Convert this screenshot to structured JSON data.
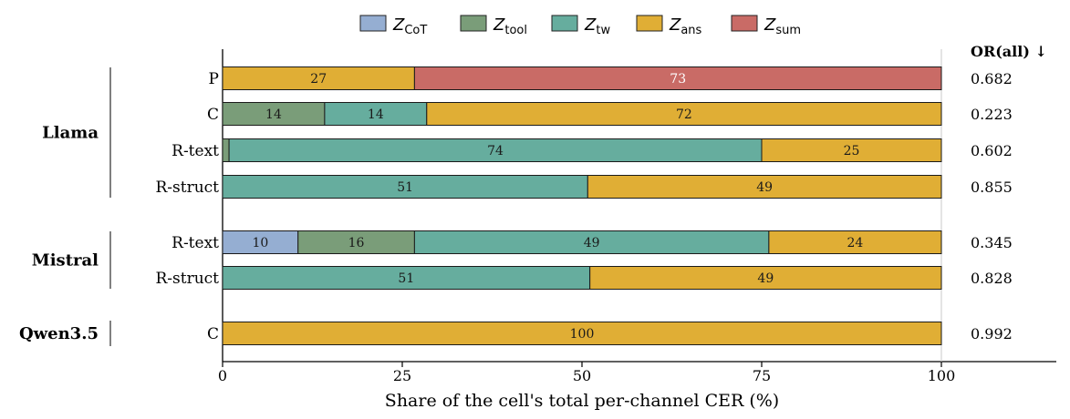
{
  "chart_data": {
    "type": "bar",
    "orientation": "horizontal",
    "stacked": true,
    "xlabel": "Share of the cell's total per-channel CER (%)",
    "xlim": [
      0,
      100
    ],
    "xticks": [
      0,
      25,
      50,
      75,
      100
    ],
    "legend": {
      "placement": "top-center",
      "entries": [
        {
          "key": "cot",
          "base": "Z",
          "sub": "CoT",
          "color": "#95aed2"
        },
        {
          "key": "tool",
          "base": "Z",
          "sub": "tool",
          "color": "#7a9d79"
        },
        {
          "key": "tw",
          "base": "Z",
          "sub": "tw",
          "color": "#66ad9e"
        },
        {
          "key": "ans",
          "base": "Z",
          "sub": "ans",
          "color": "#e0ae35"
        },
        {
          "key": "sum",
          "base": "Z",
          "sub": "sum",
          "color": "#c96b66"
        }
      ]
    },
    "or_header": "OR(all) ↓",
    "groups": [
      {
        "name": "Llama",
        "rows": [
          {
            "label": "P",
            "or": "0.682",
            "segments": [
              {
                "key": "ans",
                "value": 26.7,
                "label": "27"
              },
              {
                "key": "sum",
                "value": 73.3,
                "label": "73"
              }
            ]
          },
          {
            "label": "C",
            "or": "0.223",
            "segments": [
              {
                "key": "tool",
                "value": 14.2,
                "label": "14"
              },
              {
                "key": "tw",
                "value": 14.2,
                "label": "14"
              },
              {
                "key": "ans",
                "value": 71.6,
                "label": "72"
              }
            ]
          },
          {
            "label": "R-text",
            "or": "0.602",
            "segments": [
              {
                "key": "tool",
                "value": 0.9,
                "label": ""
              },
              {
                "key": "tw",
                "value": 74.1,
                "label": "74"
              },
              {
                "key": "ans",
                "value": 25.0,
                "label": "25"
              }
            ]
          },
          {
            "label": "R-struct",
            "or": "0.855",
            "segments": [
              {
                "key": "tw",
                "value": 50.8,
                "label": "51"
              },
              {
                "key": "ans",
                "value": 49.2,
                "label": "49"
              }
            ]
          }
        ]
      },
      {
        "name": "Mistral",
        "rows": [
          {
            "label": "R-text",
            "or": "0.345",
            "segments": [
              {
                "key": "cot",
                "value": 10.5,
                "label": "10"
              },
              {
                "key": "tool",
                "value": 16.2,
                "label": "16"
              },
              {
                "key": "tw",
                "value": 49.3,
                "label": "49"
              },
              {
                "key": "ans",
                "value": 24.0,
                "label": "24"
              }
            ]
          },
          {
            "label": "R-struct",
            "or": "0.828",
            "segments": [
              {
                "key": "tw",
                "value": 51.1,
                "label": "51"
              },
              {
                "key": "ans",
                "value": 48.9,
                "label": "49"
              }
            ]
          }
        ]
      },
      {
        "name": "Qwen3.5",
        "rows": [
          {
            "label": "C",
            "or": "0.992",
            "segments": [
              {
                "key": "ans",
                "value": 100,
                "label": "100"
              }
            ]
          }
        ]
      }
    ]
  }
}
